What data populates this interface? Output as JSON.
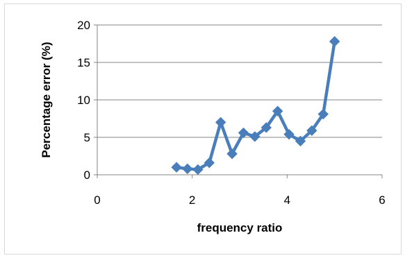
{
  "chart_data": {
    "type": "line",
    "title": "",
    "xlabel": "frequency ratio",
    "ylabel": "Percentage error (%)",
    "xlim": [
      0,
      6
    ],
    "ylim": [
      0,
      20
    ],
    "xticks": [
      0,
      2,
      4,
      6
    ],
    "yticks": [
      0,
      5,
      10,
      15,
      20
    ],
    "xtick_labels": [
      "0",
      "2",
      "4",
      "6"
    ],
    "ytick_labels": [
      "0",
      "5",
      "10",
      "15",
      "20"
    ],
    "grid": "horizontal major gridlines",
    "legend": "none",
    "series": [
      {
        "color": "#4a7ebb",
        "marker": "diamond",
        "x": [
          1.67,
          1.9,
          2.12,
          2.36,
          2.6,
          2.84,
          3.08,
          3.32,
          3.56,
          3.8,
          4.04,
          4.28,
          4.52,
          4.76,
          5.0
        ],
        "y": [
          1.0,
          0.8,
          0.7,
          1.6,
          7.0,
          2.8,
          5.6,
          5.1,
          6.3,
          8.5,
          5.4,
          4.5,
          5.9,
          8.1,
          17.8
        ]
      }
    ]
  }
}
